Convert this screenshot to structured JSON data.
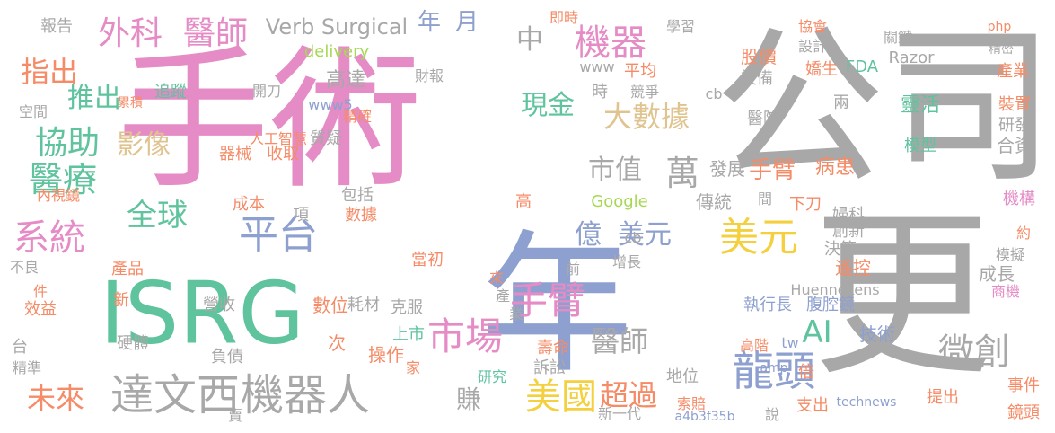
{
  "palette": {
    "pink": "#e58bc6",
    "gray": "#a8a8a8",
    "green": "#5fc39e",
    "blue": "#8ea0cf",
    "orange": "#f58b67",
    "yellow": "#f4d03f",
    "lime": "#a6d854",
    "tan": "#e0c48f"
  },
  "words": [
    "公司",
    "更",
    "手術",
    "年",
    "ISRG",
    "機器人",
    "達文西",
    "市場",
    "手臂",
    "美元",
    "龍頭",
    "美國",
    "平台",
    "系統",
    "醫療",
    "協助",
    "全球",
    "影像",
    "大數據",
    "微創",
    "萬",
    "億",
    "美元",
    "醫師",
    "超過",
    "未來",
    "外科",
    "醫師",
    "機器",
    "指出",
    "推出",
    "市值",
    "現金",
    "中",
    "年",
    "月",
    "AI",
    "手臂",
    "賺",
    "Verb Surgical",
    "高達",
    "delivery",
    "www5",
    "Google",
    "Huennekens",
    "技術",
    "腹腔鏡",
    "執行長",
    "靈活",
    "醫院",
    "股價",
    "設備",
    "模型",
    "病患",
    "合資",
    "研發",
    "成長",
    "遙控",
    "創新",
    "婦科",
    "決策",
    "傳統",
    "發展",
    "間",
    "下刀",
    "數位",
    "耗材",
    "營收",
    "負債",
    "硬體",
    "上市",
    "操作",
    "家",
    "壽命",
    "訴訟",
    "研究",
    "收取",
    "器械",
    "人工智慧",
    "質疑",
    "成本",
    "項",
    "包括",
    "數據",
    "高",
    "當初",
    "產品",
    "新",
    "不良",
    "件",
    "效益",
    "精準",
    "台",
    "次",
    "FDA",
    "產業",
    "裝置",
    "約",
    "模擬",
    "機構",
    "商機",
    "事件",
    "鏡頭",
    "提出",
    "支出",
    "倍",
    "地位",
    "索賠",
    "新一代",
    "a4b3f35b",
    "technews",
    "tw",
    "amp",
    "高階",
    "php",
    "精密",
    "Razor",
    "協會",
    "關鍵",
    "設計",
    "嬌生",
    "學習",
    "競爭",
    "平均",
    "即時",
    "時",
    "財報",
    "精確",
    "開刀",
    "追蹤",
    "報告",
    "內視鏡",
    "空間",
    "累積",
    "www",
    "cb",
    "兩",
    "cb",
    "說",
    "前",
    "增長",
    "克服",
    "賣",
    "來",
    "產",
    "業"
  ]
}
